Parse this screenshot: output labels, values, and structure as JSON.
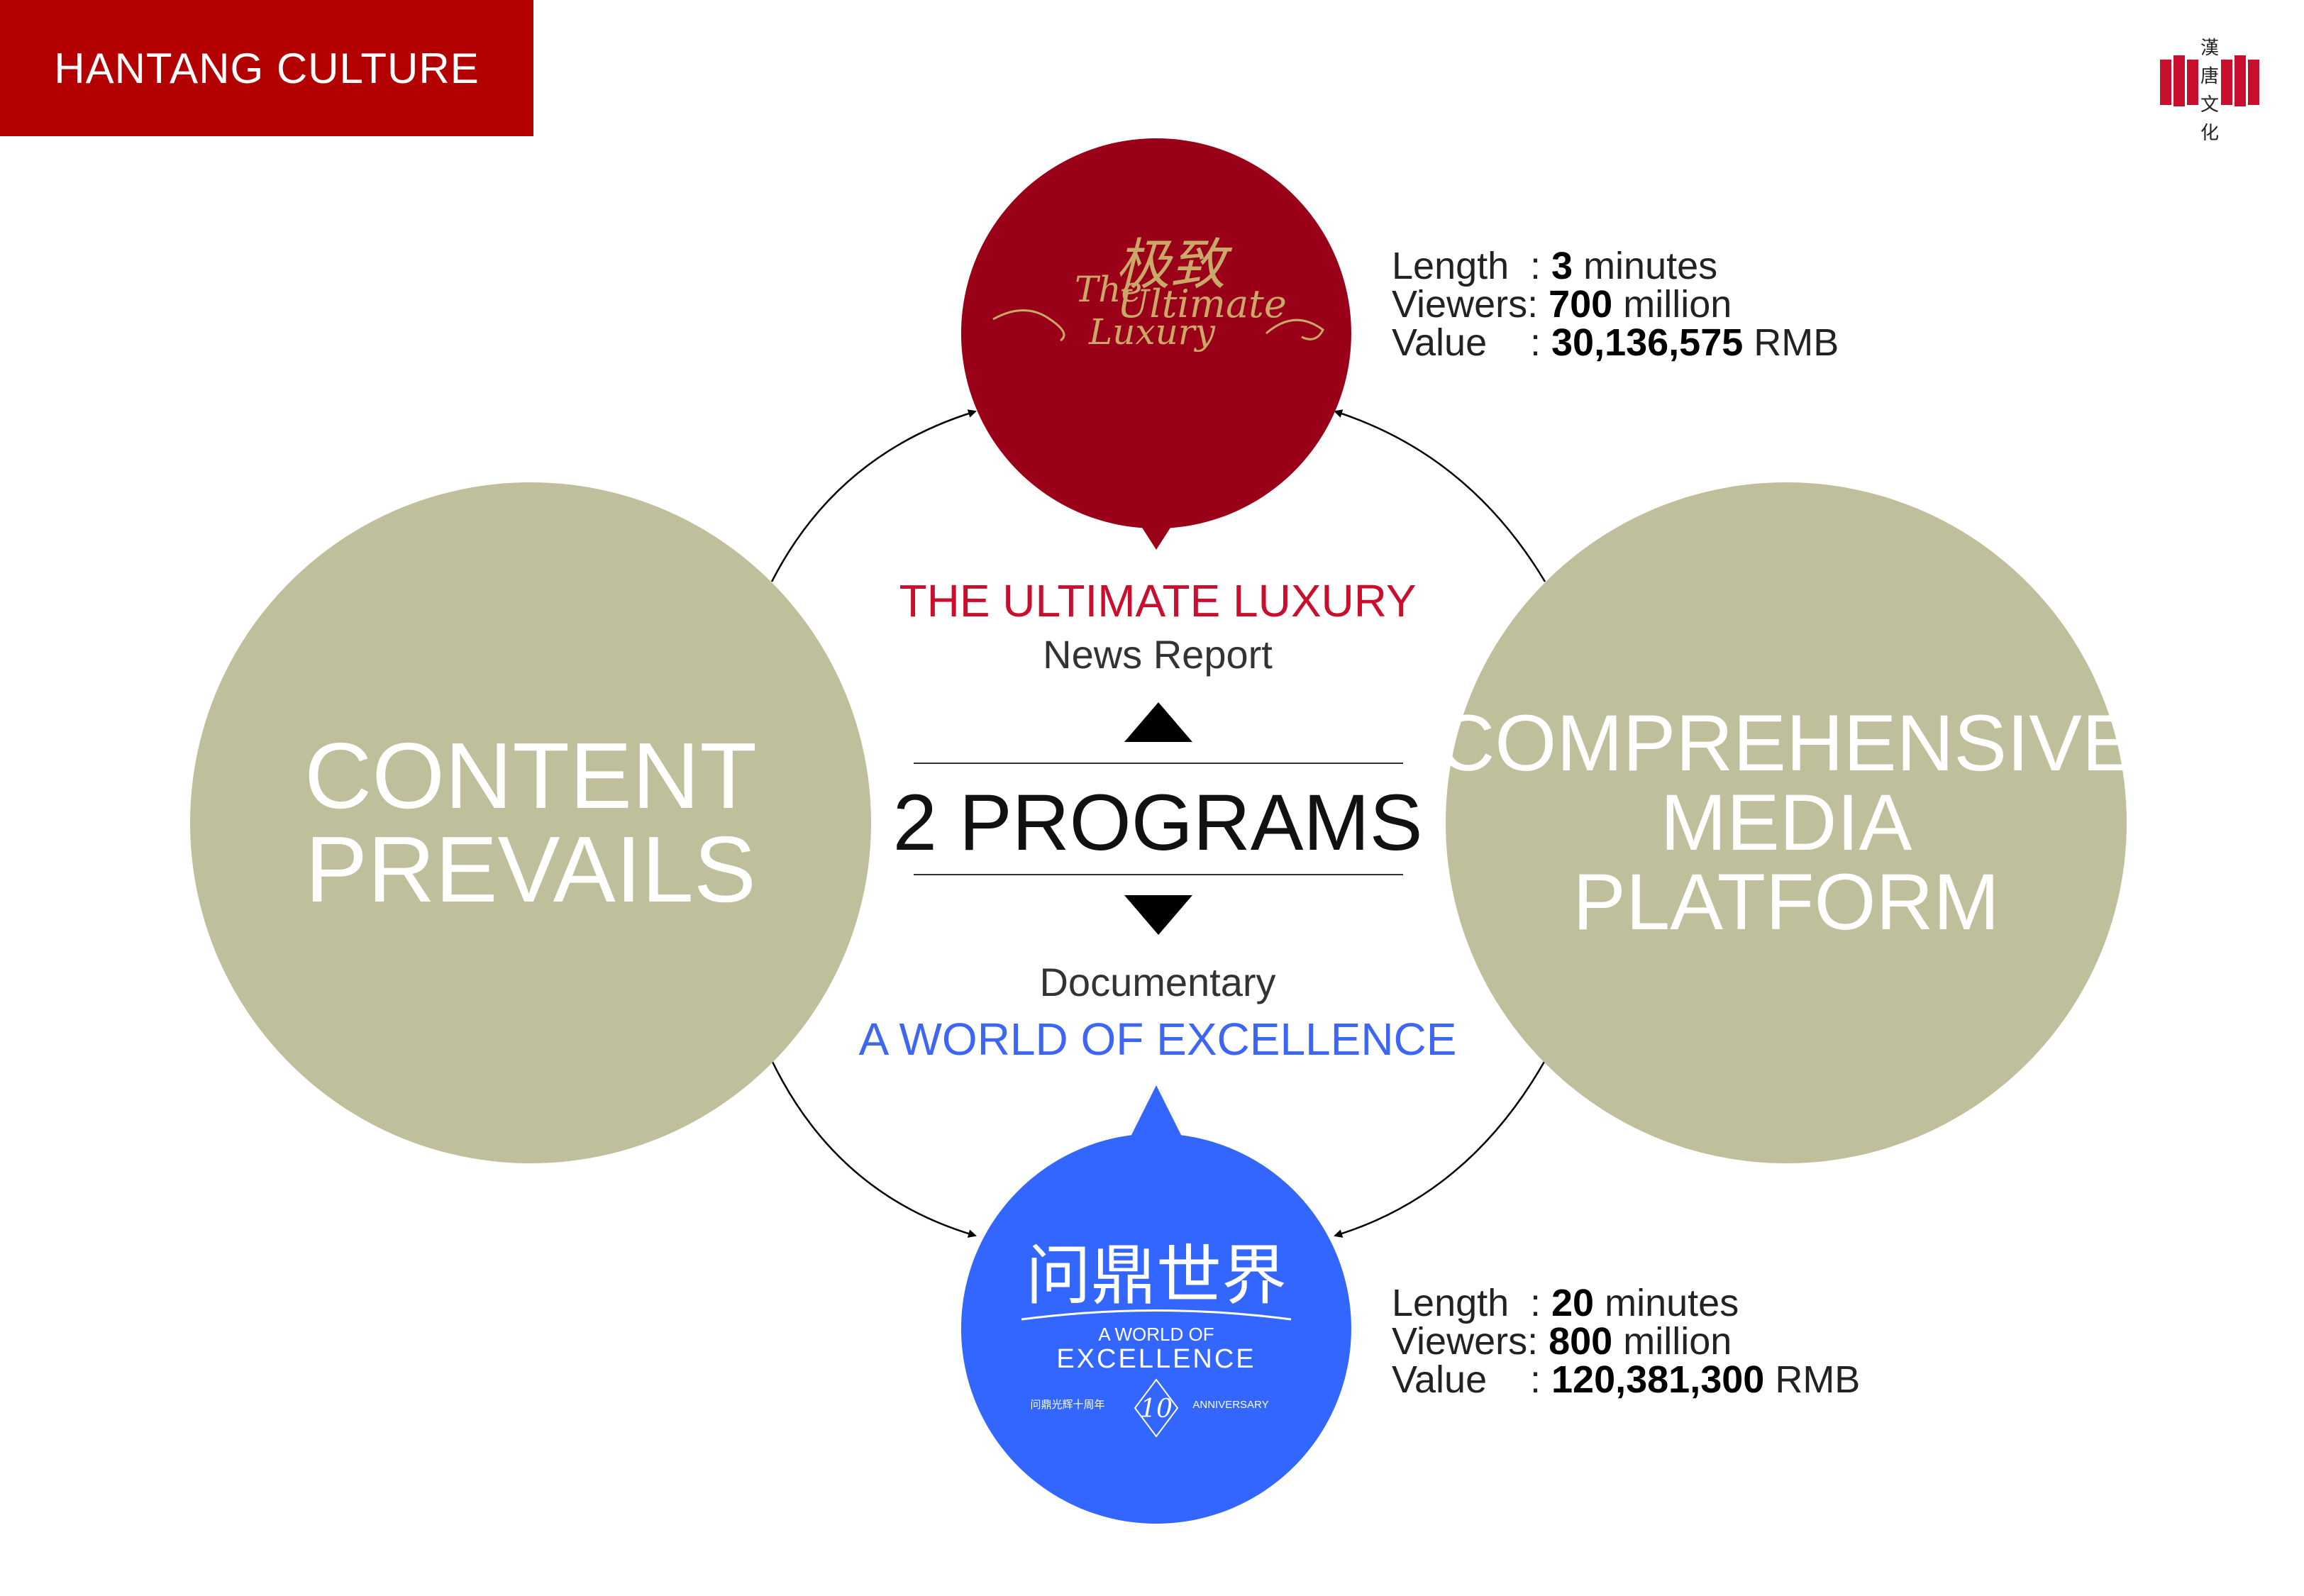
{
  "brand": {
    "label": "HANTANG CULTURE",
    "color": "#b30000"
  },
  "logo": {
    "icon": "hantang-logo-icon",
    "text": "漢唐文化"
  },
  "left_circle": {
    "line1": "CONTENT",
    "line2": "PREVAILS",
    "color": "#bfbf9c"
  },
  "right_circle": {
    "line1": "COMPREHENSIVE",
    "line2": "MEDIA",
    "line3": "PLATFORM",
    "color": "#bfbf9c"
  },
  "center": {
    "top_title": "THE ULTIMATE LUXURY",
    "top_subtitle": "News Report",
    "headline": "2 PROGRAMS",
    "bottom_subtitle": "Documentary",
    "bottom_title": "A WORLD OF EXCELLENCE",
    "top_color": "#c8102e",
    "bottom_color": "#3d66f2"
  },
  "top_bubble": {
    "color": "#9b0019",
    "logo_cn": "极致",
    "logo_en1": "The",
    "logo_en2": "Ultimate",
    "logo_en3": "Luxury"
  },
  "bottom_bubble": {
    "color": "#3366ff",
    "logo_cn": "问鼎世界",
    "logo_en1": "A WORLD OF",
    "logo_en2": "EXCELLENCE",
    "footer_cn": "问鼎光辉十周年",
    "footer_num": "10",
    "footer_en": "ANNIVERSARY"
  },
  "stats_top": {
    "length_label": "Length",
    "length_value": "3",
    "length_unit": "minutes",
    "viewers_label": "Viewers:",
    "viewers_value": "700",
    "viewers_unit": "million",
    "value_label": "Value",
    "value_value": "30,136,575",
    "value_unit": "RMB"
  },
  "stats_bottom": {
    "length_label": "Length",
    "length_value": "20",
    "length_unit": "minutes",
    "viewers_label": "Viewers:",
    "viewers_value": "800",
    "viewers_unit": "million",
    "value_label": "Value",
    "value_value": "120,381,300",
    "value_unit": "RMB"
  }
}
